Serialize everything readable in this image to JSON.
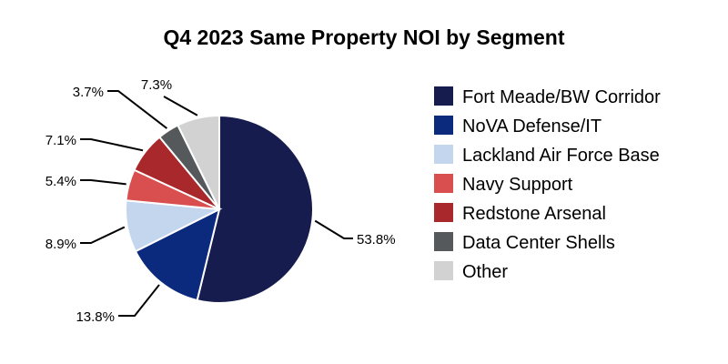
{
  "chart_data": {
    "type": "pie",
    "title": "Q4 2023 Same Property NOI by Segment",
    "start_angle": "12 o'clock",
    "direction": "clockwise",
    "legend_position": "right",
    "categories": [
      "Fort Meade/BW Corridor",
      "NoVA Defense/IT",
      "Lackland Air Force Base",
      "Navy Support",
      "Redstone Arsenal",
      "Data Center Shells",
      "Other"
    ],
    "values": [
      53.8,
      13.8,
      8.9,
      5.4,
      7.1,
      3.7,
      7.3
    ],
    "labels": [
      "53.8%",
      "13.8%",
      "8.9%",
      "5.4%",
      "7.1%",
      "3.7%",
      "7.3%"
    ],
    "colors": [
      "#161c4e",
      "#0b2a7e",
      "#c3d6ee",
      "#d94f4f",
      "#a8282b",
      "#55595b",
      "#d2d2d2"
    ]
  }
}
